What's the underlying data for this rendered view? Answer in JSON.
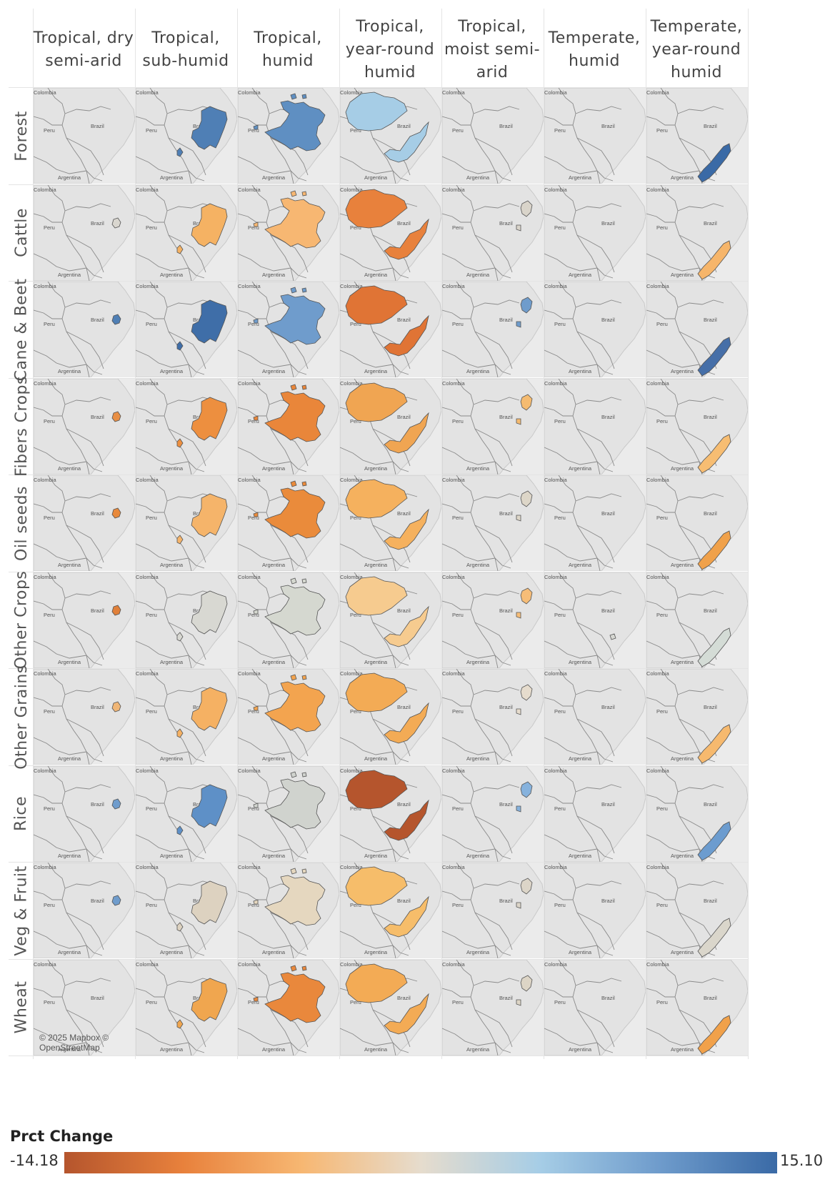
{
  "columns": [
    "Tropical, dry semi-arid",
    "Tropical, sub-humid",
    "Tropical, humid",
    "Tropical, year-round humid",
    "Tropical, moist semi-arid",
    "Temperate, humid",
    "Temperate, year-round humid"
  ],
  "rows": [
    {
      "label": "Forest",
      "colors": [
        "none",
        "#4f7fb5",
        "#5f8fc2",
        "#a6cde6",
        "none",
        "none",
        "#3a6aa6"
      ]
    },
    {
      "label": "Cattle",
      "colors": [
        "#d9d6cf",
        "#f5b263",
        "#f7b772",
        "#e8813c",
        "#d9d4ca",
        "none",
        "#f6b56a"
      ]
    },
    {
      "label": "Cane & Beet",
      "colors": [
        "#4f7fb5",
        "#3f6ea8",
        "#6f9ccc",
        "#e07435",
        "#6f9ccc",
        "none",
        "#466fa8"
      ]
    },
    {
      "label": "Fibers Crops",
      "colors": [
        "#e88f45",
        "#ed8f3f",
        "#e9863a",
        "#f0a552",
        "#f5bb70",
        "none",
        "#f7bd72"
      ]
    },
    {
      "label": "Oil seeds",
      "colors": [
        "#e8893b",
        "#f5b46a",
        "#ea8b3b",
        "#f5b15e",
        "#ddd6c8",
        "none",
        "#f0a14a"
      ]
    },
    {
      "label": "Other Crops",
      "colors": [
        "#e0803a",
        "#d8d8d2",
        "#d5d8d0",
        "#f6cb8f",
        "#f6bd78",
        "#d6d7d2",
        "#d4dcd6"
      ]
    },
    {
      "label": "Other Grains",
      "colors": [
        "#f0b676",
        "#f5b163",
        "#f3a44f",
        "#f3ab55",
        "#e6dccd",
        "none",
        "#f6b96e"
      ]
    },
    {
      "label": "Rice",
      "colors": [
        "#6f9ccc",
        "#5e90c7",
        "#d0d3ce",
        "#b5552d",
        "#86b2dd",
        "none",
        "#6c9ccf"
      ]
    },
    {
      "label": "Veg & Fruit",
      "colors": [
        "#6f9ccc",
        "#ddd2c0",
        "#e5d7bf",
        "#f6bd6a",
        "#dcd5c8",
        "none",
        "#dad6cb"
      ]
    },
    {
      "label": "Wheat",
      "colors": [
        "none",
        "#f0a64f",
        "#e9883c",
        "#f3ab55",
        "#ddd5c6",
        "none",
        "#f1a14a"
      ]
    }
  ],
  "map_labels": {
    "colombia": "Colombia",
    "peru": "Peru",
    "brazil": "Brazil",
    "argentina": "Argentina"
  },
  "copyright": "© 2025 Mapbox © OpenStreetMap",
  "legend": {
    "title": "Prct Change",
    "min": "-14.18",
    "max": "15.10",
    "stops": [
      "#b5552d",
      "#e8813c",
      "#f7b772",
      "#e6dccd",
      "#a6cde6",
      "#6f9ccc",
      "#3a6aa6"
    ]
  }
}
